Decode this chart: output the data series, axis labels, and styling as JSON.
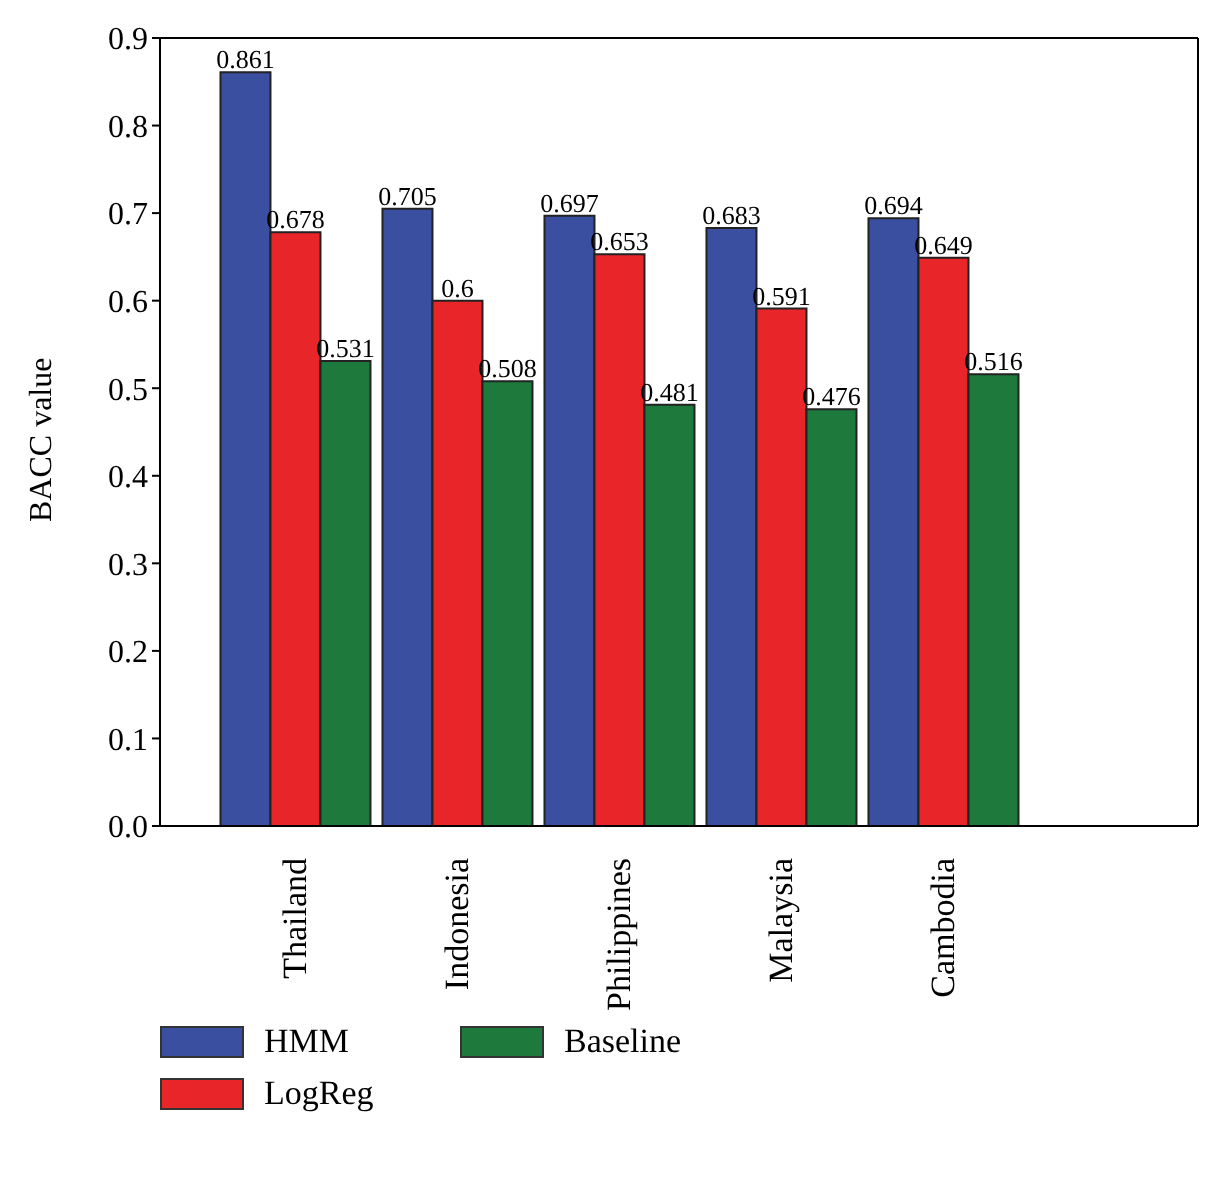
{
  "chart_data": {
    "type": "bar",
    "ylabel": "BACC value",
    "categories": [
      "Thailand",
      "Indonesia",
      "Philippines",
      "Malaysia",
      "Cambodia"
    ],
    "series": [
      {
        "name": "HMM",
        "color": "#3a4fa0",
        "values": [
          0.861,
          0.705,
          0.697,
          0.683,
          0.694
        ]
      },
      {
        "name": "LogReg",
        "color": "#e8262a",
        "values": [
          0.678,
          0.6,
          0.653,
          0.591,
          0.649
        ]
      },
      {
        "name": "Baseline",
        "color": "#1e7a3c",
        "values": [
          0.531,
          0.508,
          0.481,
          0.476,
          0.516
        ]
      }
    ],
    "ylim": [
      0,
      0.9
    ],
    "yticks": [
      {
        "value": 0,
        "label": "0.0"
      },
      0.1,
      0.2,
      0.3,
      0.4,
      0.5,
      0.6,
      0.7,
      0.8,
      0.9
    ],
    "data_labels": true,
    "grid": false,
    "legend": "bottom"
  }
}
